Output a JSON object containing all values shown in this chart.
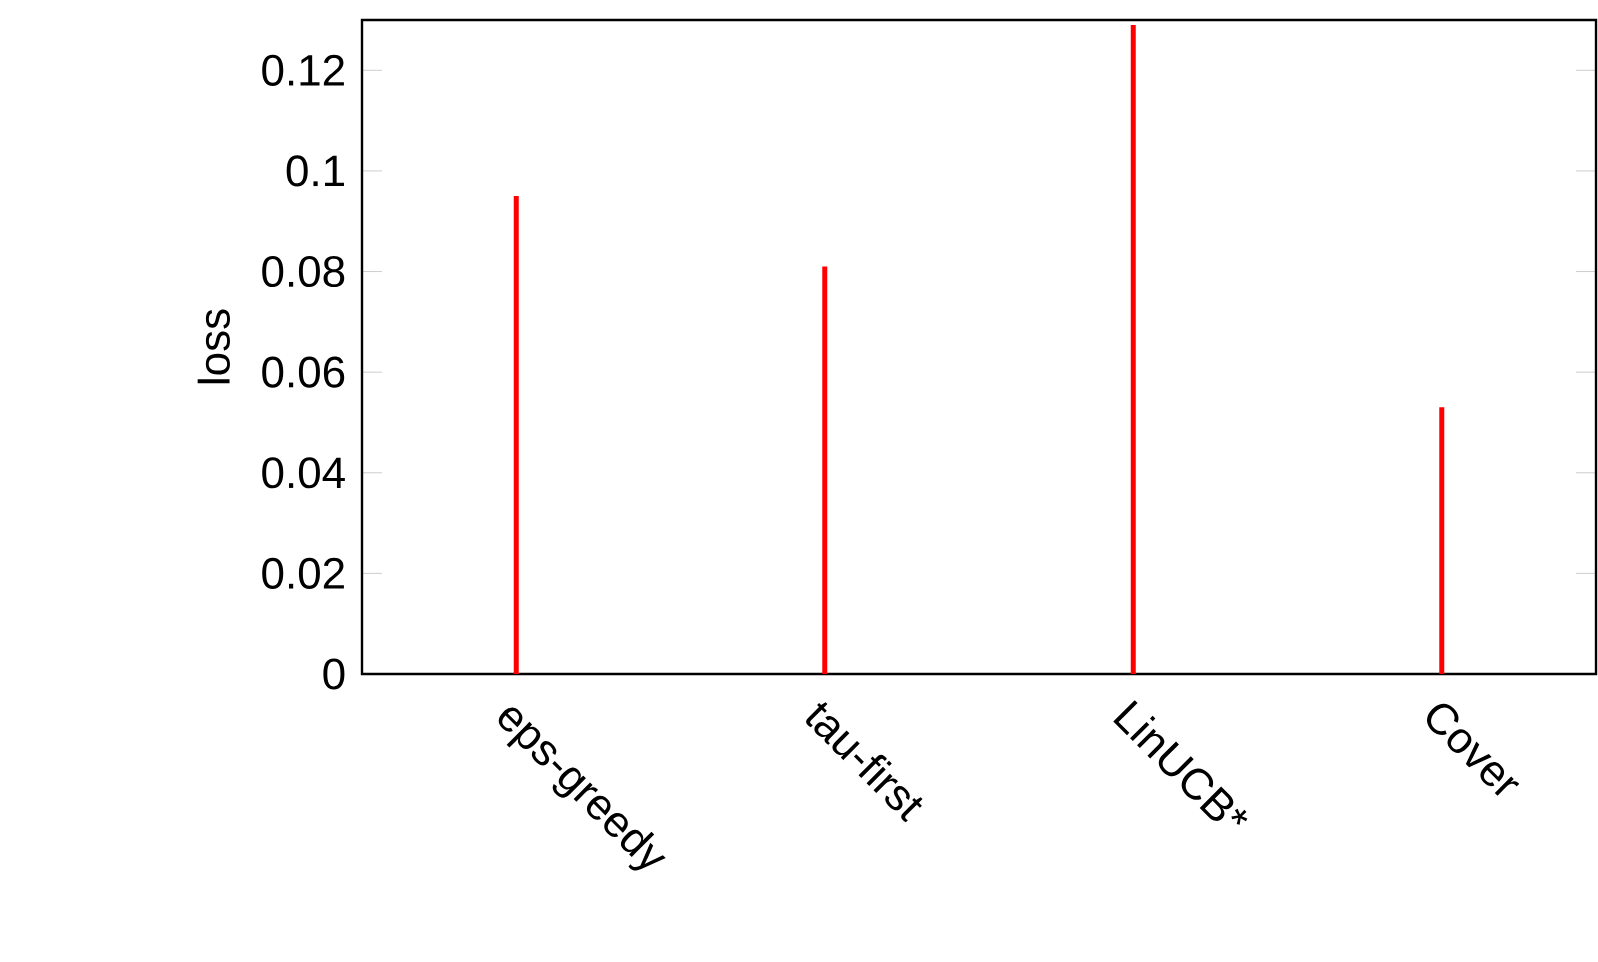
{
  "chart_data": {
    "type": "bar",
    "ylabel": "loss",
    "categories": [
      "eps-greedy",
      "tau-first",
      "LinUCB*",
      "Cover"
    ],
    "values": [
      0.095,
      0.081,
      0.129,
      0.053
    ],
    "color": "#ff0000",
    "ylim": [
      0,
      0.13
    ],
    "yticks": [
      0,
      0.02,
      0.04,
      0.06,
      0.08,
      0.1,
      0.12
    ],
    "grid": false
  }
}
